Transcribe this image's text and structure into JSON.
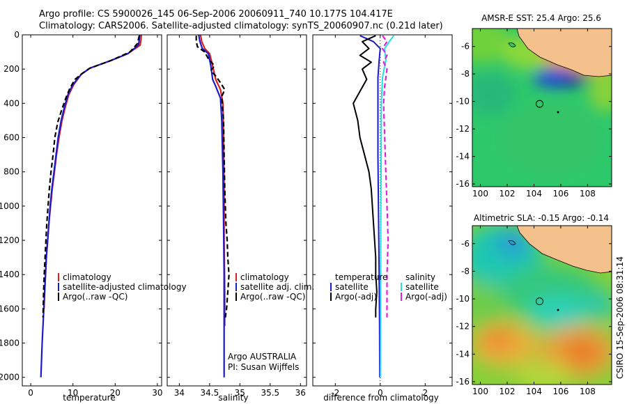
{
  "title_line1": "Argo profile: CS 5900026_145 06-Sep-2006 20060911_740 10.177S 104.417E",
  "title_line2": "Climatology: CARS2006. Satellite-adjusted climatology: synTS_20060907.nc (0.21d later)",
  "footer_stamp": "CSIRO 15-Sep-2006 08:31:14",
  "colors": {
    "climatology": "#d62020",
    "satellite": "#1a1acc",
    "argo": "#000000",
    "argo_sal": "#e020e0",
    "sat_sal": "#22e0e0",
    "land": "#f4c08c"
  },
  "chart_data": [
    {
      "type": "line",
      "id": "temperature",
      "xlabel": "temperature",
      "ylabel": "",
      "xlim": [
        -2,
        31
      ],
      "ylim": [
        0,
        2050
      ],
      "xticks": [
        0,
        10,
        20,
        30
      ],
      "yticks": [
        0,
        200,
        400,
        600,
        800,
        1000,
        1200,
        1400,
        1600,
        1800,
        2000
      ],
      "y_inverted": true,
      "legend": [
        "climatology",
        "satellite-adjusted climatology",
        "Argo(..raw -QC)"
      ],
      "series": [
        {
          "name": "climatology",
          "points": [
            [
              26.2,
              0
            ],
            [
              26.1,
              30
            ],
            [
              25.9,
              60
            ],
            [
              23,
              110
            ],
            [
              19,
              150
            ],
            [
              14,
              195
            ],
            [
              12,
              230
            ],
            [
              10.2,
              290
            ],
            [
              9,
              350
            ],
            [
              8.2,
              420
            ],
            [
              7.4,
              500
            ],
            [
              6.7,
              600
            ],
            [
              6.1,
              700
            ],
            [
              5.6,
              800
            ],
            [
              5.1,
              900
            ],
            [
              4.7,
              1000
            ],
            [
              4.3,
              1100
            ],
            [
              4,
              1200
            ],
            [
              3.7,
              1300
            ],
            [
              3.5,
              1400
            ],
            [
              3.3,
              1500
            ],
            [
              3.15,
              1600
            ]
          ]
        },
        {
          "name": "satellite-adjusted climatology",
          "points": [
            [
              25.8,
              0
            ],
            [
              25.7,
              30
            ],
            [
              25.5,
              60
            ],
            [
              23,
              110
            ],
            [
              19,
              150
            ],
            [
              14,
              195
            ],
            [
              12,
              230
            ],
            [
              10,
              290
            ],
            [
              8.8,
              350
            ],
            [
              8,
              420
            ],
            [
              7.2,
              500
            ],
            [
              6.5,
              600
            ],
            [
              6,
              700
            ],
            [
              5.5,
              800
            ],
            [
              5,
              900
            ],
            [
              4.6,
              1000
            ],
            [
              4.3,
              1100
            ],
            [
              4,
              1200
            ],
            [
              3.7,
              1300
            ],
            [
              3.5,
              1400
            ],
            [
              3.3,
              1500
            ],
            [
              3.1,
              1600
            ],
            [
              2.9,
              1700
            ],
            [
              2.7,
              1800
            ],
            [
              2.55,
              1900
            ],
            [
              2.4,
              2000
            ]
          ]
        },
        {
          "name": "Argo(..raw -QC)",
          "points": [
            [
              25.7,
              5
            ],
            [
              25.5,
              25
            ],
            [
              25.3,
              50
            ],
            [
              23.5,
              100
            ],
            [
              19,
              150
            ],
            [
              14,
              195
            ],
            [
              12.2,
              225
            ],
            [
              10.5,
              260
            ],
            [
              9.3,
              310
            ],
            [
              8.3,
              370
            ],
            [
              7.3,
              440
            ],
            [
              6.4,
              510
            ],
            [
              5.7,
              600
            ],
            [
              5.3,
              700
            ],
            [
              4.8,
              800
            ],
            [
              4.4,
              900
            ],
            [
              4.1,
              1000
            ],
            [
              3.8,
              1100
            ],
            [
              3.6,
              1200
            ],
            [
              3.4,
              1300
            ],
            [
              3.2,
              1400
            ],
            [
              3.05,
              1500
            ],
            [
              2.95,
              1600
            ],
            [
              2.9,
              1650
            ]
          ]
        }
      ]
    },
    {
      "type": "line",
      "id": "salinity",
      "xlabel": "salinity",
      "ylabel": "",
      "xlim": [
        33.8,
        36.1
      ],
      "ylim": [
        0,
        2050
      ],
      "xticks": [
        34,
        34.5,
        35,
        35.5,
        36
      ],
      "y_inverted": true,
      "legend": [
        "climatology",
        "satellite adj. clim.",
        "Argo(..raw -QC)"
      ],
      "annotations": [
        "Argo AUSTRALIA",
        "PI: Susan Wijffels"
      ],
      "series": [
        {
          "name": "climatology",
          "points": [
            [
              34.35,
              0
            ],
            [
              34.37,
              40
            ],
            [
              34.42,
              80
            ],
            [
              34.5,
              110
            ],
            [
              34.55,
              180
            ],
            [
              34.6,
              260
            ],
            [
              34.68,
              320
            ],
            [
              34.72,
              400
            ],
            [
              34.73,
              600
            ],
            [
              34.74,
              900
            ],
            [
              34.74,
              1200
            ],
            [
              34.75,
              1500
            ],
            [
              34.75,
              1700
            ]
          ]
        },
        {
          "name": "satellite adj. clim.",
          "points": [
            [
              34.32,
              0
            ],
            [
              34.34,
              40
            ],
            [
              34.38,
              80
            ],
            [
              34.48,
              110
            ],
            [
              34.52,
              180
            ],
            [
              34.55,
              260
            ],
            [
              34.6,
              300
            ],
            [
              34.68,
              370
            ],
            [
              34.7,
              500
            ],
            [
              34.72,
              800
            ],
            [
              34.73,
              1100
            ],
            [
              34.74,
              1400
            ],
            [
              34.74,
              1700
            ],
            [
              34.74,
              2000
            ]
          ]
        },
        {
          "name": "Argo(..raw -QC)",
          "points": [
            [
              34.28,
              5
            ],
            [
              34.28,
              40
            ],
            [
              34.3,
              70
            ],
            [
              34.42,
              100
            ],
            [
              34.48,
              140
            ],
            [
              34.58,
              180
            ],
            [
              34.52,
              210
            ],
            [
              34.6,
              240
            ],
            [
              34.68,
              280
            ],
            [
              34.75,
              320
            ],
            [
              34.7,
              360
            ],
            [
              34.73,
              500
            ],
            [
              34.74,
              700
            ],
            [
              34.75,
              900
            ],
            [
              34.77,
              1100
            ],
            [
              34.79,
              1200
            ],
            [
              34.8,
              1300
            ],
            [
              34.82,
              1400
            ],
            [
              34.8,
              1500
            ],
            [
              34.78,
              1600
            ],
            [
              34.76,
              1650
            ]
          ]
        }
      ]
    },
    {
      "type": "line",
      "id": "difference",
      "xlabel": "difference from climatology",
      "ylabel": "",
      "xlim": [
        -3,
        3.2
      ],
      "ylim": [
        0,
        2050
      ],
      "xticks": [
        -2,
        0,
        2
      ],
      "y_inverted": true,
      "legend": [
        "temperature",
        "satellite",
        "Argo(-adj)",
        "salinity",
        "satellite",
        "Argo(-adj)"
      ],
      "series": [
        {
          "name": "temperature satellite",
          "points": [
            [
              -0.9,
              5
            ],
            [
              -0.3,
              40
            ],
            [
              0,
              80
            ],
            [
              -0.05,
              150
            ],
            [
              -0.1,
              250
            ],
            [
              -0.1,
              400
            ],
            [
              -0.1,
              700
            ],
            [
              -0.08,
              1000
            ],
            [
              -0.05,
              1400
            ],
            [
              -0.03,
              1700
            ],
            [
              -0.02,
              2000
            ]
          ]
        },
        {
          "name": "temperature Argo(-adj)",
          "points": [
            [
              -0.2,
              5
            ],
            [
              -0.8,
              40
            ],
            [
              -0.5,
              80
            ],
            [
              -0.9,
              120
            ],
            [
              -0.4,
              160
            ],
            [
              -0.8,
              200
            ],
            [
              -0.6,
              260
            ],
            [
              -0.9,
              330
            ],
            [
              -1.2,
              400
            ],
            [
              -1,
              500
            ],
            [
              -0.9,
              600
            ],
            [
              -0.7,
              700
            ],
            [
              -0.5,
              800
            ],
            [
              -0.4,
              900
            ],
            [
              -0.35,
              1000
            ],
            [
              -0.3,
              1100
            ],
            [
              -0.25,
              1200
            ],
            [
              -0.2,
              1300
            ],
            [
              -0.2,
              1400
            ],
            [
              -0.15,
              1500
            ],
            [
              -0.2,
              1600
            ],
            [
              -0.2,
              1650
            ]
          ]
        },
        {
          "name": "salinity satellite",
          "points": [
            [
              0.6,
              5
            ],
            [
              0.4,
              40
            ],
            [
              0.2,
              80
            ],
            [
              0.25,
              150
            ],
            [
              0.1,
              250
            ],
            [
              0.05,
              400
            ],
            [
              0.04,
              700
            ],
            [
              0.03,
              1000
            ],
            [
              0.02,
              1400
            ],
            [
              0.02,
              1700
            ],
            [
              0.01,
              2000
            ]
          ]
        },
        {
          "name": "salinity Argo(-adj)",
          "points": [
            [
              0.1,
              5
            ],
            [
              0.3,
              40
            ],
            [
              0.1,
              80
            ],
            [
              0.3,
              120
            ],
            [
              0.15,
              160
            ],
            [
              0.3,
              200
            ],
            [
              0.2,
              300
            ],
            [
              0.15,
              400
            ],
            [
              0.2,
              600
            ],
            [
              0.25,
              800
            ],
            [
              0.3,
              1000
            ],
            [
              0.35,
              1200
            ],
            [
              0.3,
              1400
            ],
            [
              0.3,
              1600
            ],
            [
              0.3,
              1650
            ]
          ]
        }
      ]
    },
    {
      "type": "heatmap",
      "id": "sst-map",
      "title": "AMSR-E SST: 25.4  Argo: 25.6",
      "xlim": [
        99.4,
        109.8
      ],
      "ylim": [
        -16.2,
        -4.7
      ],
      "xticks": [
        100,
        102,
        104,
        106,
        108
      ],
      "yticks": [
        -6,
        -8,
        -10,
        -12,
        -14,
        -16
      ],
      "marker": [
        104.417,
        -10.177
      ]
    },
    {
      "type": "heatmap",
      "id": "sla-map",
      "title": "Altimetric SLA: -0.15  Argo: -0.14",
      "xlim": [
        99.4,
        109.8
      ],
      "ylim": [
        -16.2,
        -4.7
      ],
      "xticks": [
        100,
        102,
        104,
        106,
        108
      ],
      "yticks": [
        -6,
        -8,
        -10,
        -12,
        -14,
        -16
      ],
      "marker": [
        104.417,
        -10.177
      ]
    }
  ]
}
